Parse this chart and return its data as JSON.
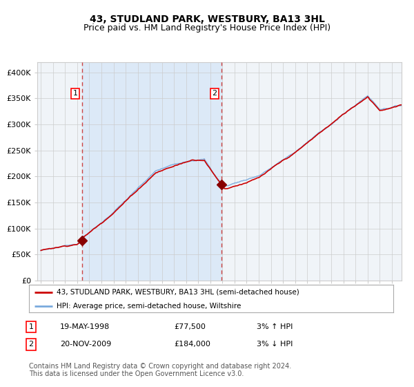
{
  "title": "43, STUDLAND PARK, WESTBURY, BA13 3HL",
  "subtitle": "Price paid vs. HM Land Registry's House Price Index (HPI)",
  "title_fontsize": 10,
  "subtitle_fontsize": 9,
  "ylabel_ticks": [
    "£0",
    "£50K",
    "£100K",
    "£150K",
    "£200K",
    "£250K",
    "£300K",
    "£350K",
    "£400K"
  ],
  "ytick_vals": [
    0,
    50000,
    100000,
    150000,
    200000,
    250000,
    300000,
    350000,
    400000
  ],
  "ylim": [
    0,
    420000
  ],
  "xlim_start": 1994.7,
  "xlim_end": 2024.8,
  "x_start_year": 1995,
  "x_end_year": 2024,
  "sale1_date": 1998.38,
  "sale1_price": 77500,
  "sale2_date": 2009.9,
  "sale2_price": 184000,
  "shade_start": 1998.38,
  "shade_end": 2009.9,
  "shade_color": "#dce9f7",
  "vline_color": "#cc4444",
  "red_line_color": "#cc0000",
  "blue_line_color": "#7aaadd",
  "marker_color": "#880000",
  "legend1_label": "43, STUDLAND PARK, WESTBURY, BA13 3HL (semi-detached house)",
  "legend2_label": "HPI: Average price, semi-detached house, Wiltshire",
  "table_row1": [
    "1",
    "19-MAY-1998",
    "£77,500",
    "3% ↑ HPI"
  ],
  "table_row2": [
    "2",
    "20-NOV-2009",
    "£184,000",
    "3% ↓ HPI"
  ],
  "footnote": "Contains HM Land Registry data © Crown copyright and database right 2024.\nThis data is licensed under the Open Government Licence v3.0.",
  "footnote_fontsize": 7,
  "grid_color": "#cccccc",
  "background_color": "#ffffff",
  "plot_bg_color": "#f0f4f8"
}
